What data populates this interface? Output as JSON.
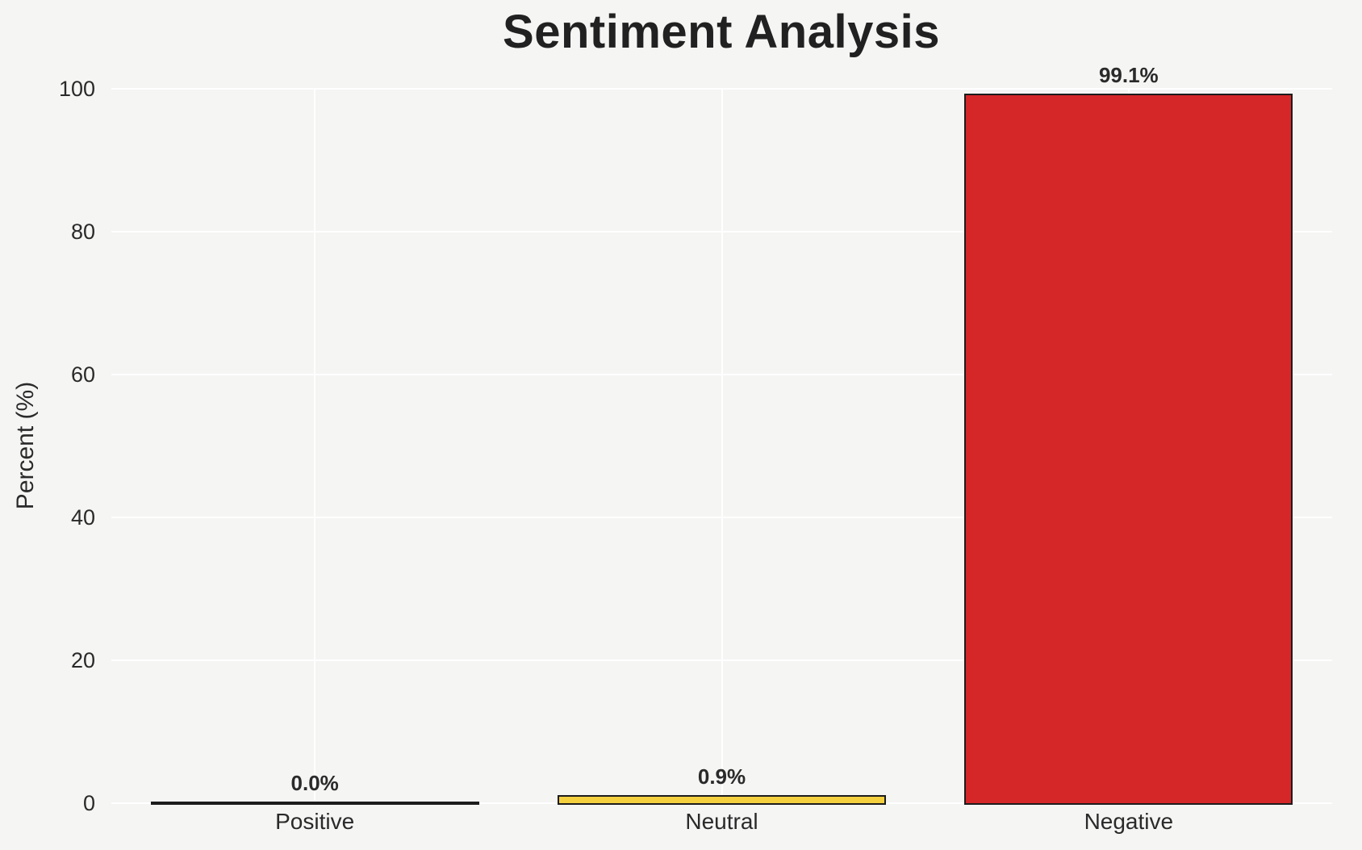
{
  "figure": {
    "background_color": "#f5f5f4",
    "grid_color": "#ffffff",
    "text_color": "#2a2a2a",
    "title_color": "#212121"
  },
  "chart_data": {
    "type": "bar",
    "title": "Sentiment Analysis",
    "xlabel": "",
    "ylabel": "Percent (%)",
    "categories": [
      "Positive",
      "Neutral",
      "Negative"
    ],
    "values": [
      0.0,
      0.9,
      99.1
    ],
    "value_labels": [
      "0.0%",
      "0.9%",
      "99.1%"
    ],
    "bar_fill_colors": [
      null,
      "#f4d03f",
      "#d62728"
    ],
    "bar_edge_color": "#1c1c1c",
    "bar_width_fraction": 0.8,
    "ylim": [
      0,
      100
    ],
    "yticks": [
      0,
      20,
      40,
      60,
      80,
      100
    ],
    "ytick_labels": [
      "0",
      "20",
      "40",
      "60",
      "80",
      "100"
    ],
    "grid": "both",
    "legend": "none"
  }
}
